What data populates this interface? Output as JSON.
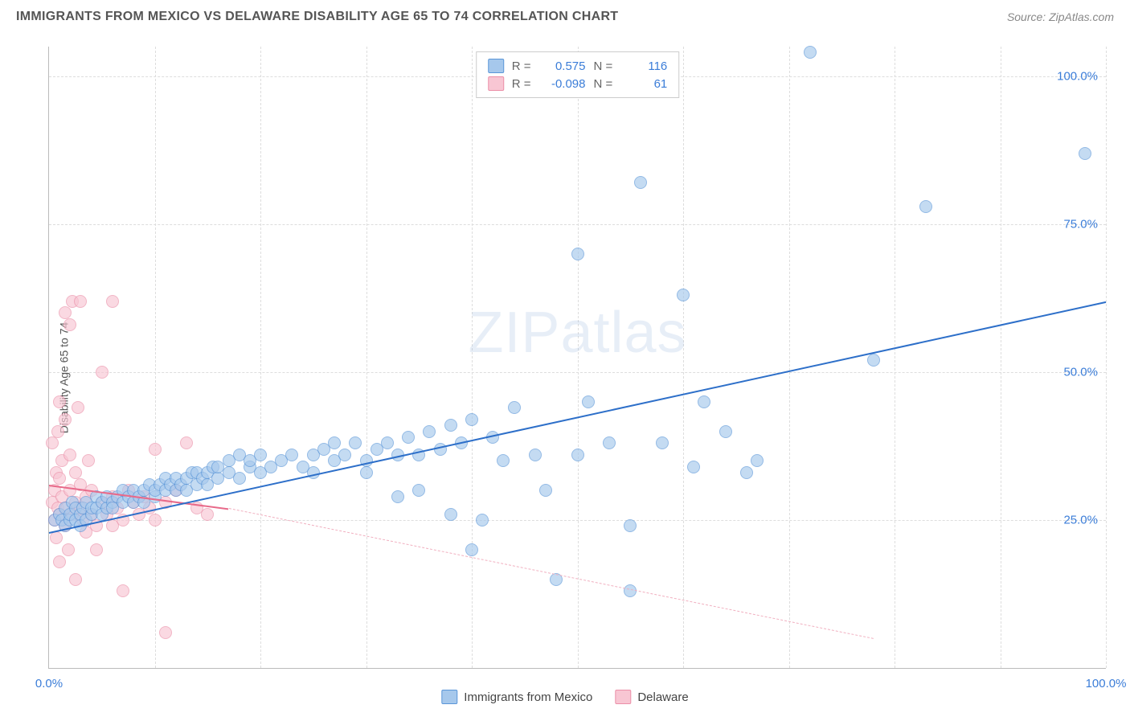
{
  "title": "IMMIGRANTS FROM MEXICO VS DELAWARE DISABILITY AGE 65 TO 74 CORRELATION CHART",
  "source_label": "Source: ",
  "source_value": "ZipAtlas.com",
  "ylabel": "Disability Age 65 to 74",
  "watermark_a": "ZIP",
  "watermark_b": "atlas",
  "chart": {
    "type": "scatter",
    "xlim": [
      0,
      100
    ],
    "ylim": [
      0,
      105
    ],
    "yticks": [
      25,
      50,
      75,
      100
    ],
    "ytick_labels": [
      "25.0%",
      "50.0%",
      "75.0%",
      "100.0%"
    ],
    "xticks": [
      0,
      100
    ],
    "xtick_labels": [
      "0.0%",
      "100.0%"
    ],
    "xgrid_minor": [
      10,
      20,
      30,
      40,
      50,
      60,
      70,
      80,
      90,
      100
    ],
    "background_color": "#ffffff",
    "grid_color": "#dddddd",
    "axis_color": "#bbbbbb",
    "tick_label_color": "#3b7dd8",
    "marker_radius": 8,
    "series": {
      "blue": {
        "label": "Immigrants from Mexico",
        "fill": "#a6c8ec",
        "stroke": "#5a96d8",
        "R": 0.575,
        "N": 116,
        "regression": {
          "x1": 0,
          "y1": 23,
          "x2": 100,
          "y2": 62,
          "style": "solid",
          "color": "#2d6fc9",
          "width": 2.5
        },
        "points": [
          [
            0.5,
            25
          ],
          [
            1,
            26
          ],
          [
            1.2,
            25
          ],
          [
            1.5,
            24
          ],
          [
            1.5,
            27
          ],
          [
            2,
            25
          ],
          [
            2,
            26
          ],
          [
            2.2,
            28
          ],
          [
            2.5,
            25
          ],
          [
            2.5,
            27
          ],
          [
            3,
            26
          ],
          [
            3,
            24
          ],
          [
            3.2,
            27
          ],
          [
            3.5,
            28
          ],
          [
            3.5,
            25
          ],
          [
            4,
            26
          ],
          [
            4,
            27
          ],
          [
            4.5,
            29
          ],
          [
            4.5,
            27
          ],
          [
            5,
            26
          ],
          [
            5,
            28
          ],
          [
            5.5,
            27
          ],
          [
            5.5,
            29
          ],
          [
            6,
            28
          ],
          [
            6,
            27
          ],
          [
            6.5,
            29
          ],
          [
            7,
            28
          ],
          [
            7,
            30
          ],
          [
            7.5,
            29
          ],
          [
            8,
            28
          ],
          [
            8,
            30
          ],
          [
            8.5,
            29
          ],
          [
            9,
            30
          ],
          [
            9,
            28
          ],
          [
            9.5,
            31
          ],
          [
            10,
            29
          ],
          [
            10,
            30
          ],
          [
            10.5,
            31
          ],
          [
            11,
            30
          ],
          [
            11,
            32
          ],
          [
            11.5,
            31
          ],
          [
            12,
            30
          ],
          [
            12,
            32
          ],
          [
            12.5,
            31
          ],
          [
            13,
            32
          ],
          [
            13,
            30
          ],
          [
            13.5,
            33
          ],
          [
            14,
            31
          ],
          [
            14,
            33
          ],
          [
            14.5,
            32
          ],
          [
            15,
            33
          ],
          [
            15,
            31
          ],
          [
            15.5,
            34
          ],
          [
            16,
            32
          ],
          [
            16,
            34
          ],
          [
            17,
            33
          ],
          [
            17,
            35
          ],
          [
            18,
            32
          ],
          [
            18,
            36
          ],
          [
            19,
            34
          ],
          [
            19,
            35
          ],
          [
            20,
            33
          ],
          [
            20,
            36
          ],
          [
            21,
            34
          ],
          [
            22,
            35
          ],
          [
            23,
            36
          ],
          [
            24,
            34
          ],
          [
            25,
            36
          ],
          [
            25,
            33
          ],
          [
            26,
            37
          ],
          [
            27,
            38
          ],
          [
            27,
            35
          ],
          [
            28,
            36
          ],
          [
            29,
            38
          ],
          [
            30,
            35
          ],
          [
            30,
            33
          ],
          [
            31,
            37
          ],
          [
            32,
            38
          ],
          [
            33,
            36
          ],
          [
            33,
            29
          ],
          [
            34,
            39
          ],
          [
            35,
            36
          ],
          [
            35,
            30
          ],
          [
            36,
            40
          ],
          [
            37,
            37
          ],
          [
            38,
            41
          ],
          [
            38,
            26
          ],
          [
            39,
            38
          ],
          [
            40,
            42
          ],
          [
            40,
            20
          ],
          [
            41,
            25
          ],
          [
            42,
            39
          ],
          [
            43,
            35
          ],
          [
            44,
            44
          ],
          [
            46,
            36
          ],
          [
            47,
            30
          ],
          [
            48,
            15
          ],
          [
            50,
            36
          ],
          [
            50,
            70
          ],
          [
            51,
            45
          ],
          [
            53,
            38
          ],
          [
            55,
            24
          ],
          [
            55,
            13
          ],
          [
            56,
            82
          ],
          [
            58,
            38
          ],
          [
            60,
            63
          ],
          [
            61,
            34
          ],
          [
            62,
            45
          ],
          [
            64,
            40
          ],
          [
            66,
            33
          ],
          [
            67,
            35
          ],
          [
            72,
            104
          ],
          [
            78,
            52
          ],
          [
            83,
            78
          ],
          [
            98,
            87
          ]
        ]
      },
      "pink": {
        "label": "Delaware",
        "fill": "#f8c6d3",
        "stroke": "#eb8fa8",
        "R": -0.098,
        "N": 61,
        "regression_solid": {
          "x1": 0,
          "y1": 31,
          "x2": 17,
          "y2": 27,
          "style": "solid",
          "color": "#e86a8a",
          "width": 2.5
        },
        "regression_dash": {
          "x1": 17,
          "y1": 27,
          "x2": 78,
          "y2": 5,
          "style": "dashed",
          "color": "#f1b0c0",
          "width": 1.5
        },
        "points": [
          [
            0.3,
            28
          ],
          [
            0.3,
            38
          ],
          [
            0.5,
            25
          ],
          [
            0.5,
            30
          ],
          [
            0.7,
            22
          ],
          [
            0.7,
            33
          ],
          [
            0.8,
            27
          ],
          [
            0.8,
            40
          ],
          [
            1,
            26
          ],
          [
            1,
            32
          ],
          [
            1,
            45
          ],
          [
            1,
            18
          ],
          [
            1.2,
            29
          ],
          [
            1.2,
            35
          ],
          [
            1.5,
            24
          ],
          [
            1.5,
            42
          ],
          [
            1.5,
            60
          ],
          [
            1.7,
            27
          ],
          [
            1.8,
            20
          ],
          [
            2,
            30
          ],
          [
            2,
            36
          ],
          [
            2,
            58
          ],
          [
            2.2,
            26
          ],
          [
            2.2,
            62
          ],
          [
            2.5,
            28
          ],
          [
            2.5,
            33
          ],
          [
            2.5,
            15
          ],
          [
            2.7,
            44
          ],
          [
            3,
            27
          ],
          [
            3,
            31
          ],
          [
            3,
            62
          ],
          [
            3.2,
            25
          ],
          [
            3.5,
            29
          ],
          [
            3.5,
            23
          ],
          [
            3.7,
            35
          ],
          [
            4,
            26
          ],
          [
            4,
            30
          ],
          [
            4.5,
            24
          ],
          [
            4.5,
            20
          ],
          [
            5,
            28
          ],
          [
            5,
            50
          ],
          [
            5.5,
            26
          ],
          [
            6,
            29
          ],
          [
            6,
            24
          ],
          [
            6,
            62
          ],
          [
            6.5,
            27
          ],
          [
            7,
            25
          ],
          [
            7,
            13
          ],
          [
            7.5,
            30
          ],
          [
            8,
            28
          ],
          [
            8.5,
            26
          ],
          [
            9,
            29
          ],
          [
            9.5,
            27
          ],
          [
            10,
            25
          ],
          [
            10,
            37
          ],
          [
            11,
            28
          ],
          [
            12,
            30
          ],
          [
            13,
            38
          ],
          [
            14,
            27
          ],
          [
            15,
            26
          ],
          [
            11,
            6
          ]
        ]
      }
    },
    "legend_top": {
      "r_label": "R =",
      "n_label": "N ="
    },
    "legend_bottom_swatch_b": "Immigrants from Mexico",
    "legend_bottom_swatch_p": "Delaware"
  }
}
